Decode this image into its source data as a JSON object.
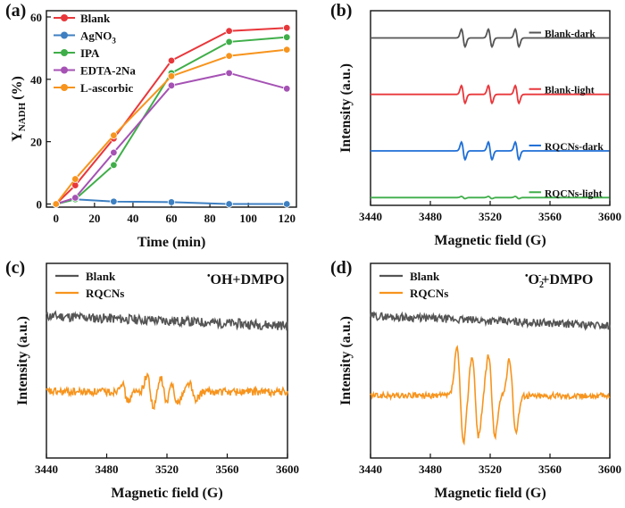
{
  "chart_data": [
    {
      "panel": "(a)",
      "type": "line",
      "xlabel": "Time (min)",
      "ylabel_main": "Y",
      "ylabel_sub": "NADH",
      "ylabel_unit": "(%)",
      "xlim": [
        -5,
        125
      ],
      "ylim": [
        -1,
        62
      ],
      "xticks": [
        0,
        20,
        40,
        60,
        80,
        100,
        120
      ],
      "yticks": [
        0,
        20,
        40,
        60
      ],
      "x": [
        0,
        10,
        30,
        60,
        90,
        120
      ],
      "series": [
        {
          "name": "Blank",
          "color": "#e8373b",
          "values": [
            0,
            6,
            21,
            46,
            55.5,
            56.5
          ]
        },
        {
          "name": "AgNO",
          "subscript": "3",
          "color": "#3d7fc1",
          "values": [
            0,
            1.5,
            0.8,
            0.6,
            0,
            0
          ]
        },
        {
          "name": "IPA",
          "color": "#3fae49",
          "values": [
            0,
            1.5,
            12.5,
            42,
            52,
            53.5
          ]
        },
        {
          "name": "EDTA-2Na",
          "color": "#a552b4",
          "values": [
            0,
            2,
            16.5,
            38,
            42,
            37
          ]
        },
        {
          "name": "L-ascorbic",
          "color": "#f7941d",
          "values": [
            0,
            8,
            22,
            41,
            47.5,
            49.5
          ]
        }
      ]
    },
    {
      "panel": "(b)",
      "type": "line",
      "xlabel": "Magnetic field (G)",
      "ylabel": "Intensity (a.u.)",
      "xlim": [
        3440,
        3600
      ],
      "xticks": [
        3440,
        3480,
        3520,
        3560,
        3600
      ],
      "series": [
        {
          "name": "Blank-dark",
          "color": "#555555",
          "baseline": 0.86,
          "amplitude": 0.62,
          "noise": 0
        },
        {
          "name": "Blank-light",
          "color": "#e8373b",
          "baseline": 0.57,
          "amplitude": 0.62,
          "noise": 0
        },
        {
          "name": "RQCNs-dark",
          "color": "#1f6fd6",
          "baseline": 0.28,
          "amplitude": 0.62,
          "noise": 0
        },
        {
          "name": "RQCNs-light",
          "color": "#3fae49",
          "baseline": 0.04,
          "amplitude": 0.08,
          "noise": 0
        }
      ],
      "peak_centers": [
        3502,
        3520,
        3538
      ]
    },
    {
      "panel": "(c)",
      "type": "line",
      "title_dot": "•",
      "title": "OH+DMPO",
      "xlabel": "Magnetic field (G)",
      "ylabel": "Intensity (a.u.)",
      "xlim": [
        3440,
        3600
      ],
      "xticks": [
        3440,
        3480,
        3520,
        3560,
        3600
      ],
      "series": [
        {
          "name": "Blank",
          "color": "#555555",
          "baseline": 0.73,
          "slope": -0.05,
          "noise": 0.025
        },
        {
          "name": "RQCNs",
          "color": "#f7941d",
          "baseline": 0.34,
          "slope": 0,
          "noise": 0.02,
          "peaks": [
            [
              3492,
              0.08
            ],
            [
              3509,
              0.14
            ],
            [
              3518,
              0.12
            ],
            [
              3525,
              0.1
            ],
            [
              3537,
              0.08
            ]
          ]
        }
      ]
    },
    {
      "panel": "(d)",
      "type": "line",
      "title_dot": "•",
      "title": "O",
      "title_sub": "2",
      "title_sup": "-",
      "title_end": "+DMPO",
      "xlabel": "Magnetic field (G)",
      "ylabel": "Intensity (a.u.)",
      "xlim": [
        3440,
        3600
      ],
      "xticks": [
        3440,
        3480,
        3520,
        3560,
        3600
      ],
      "series": [
        {
          "name": "Blank",
          "color": "#555555",
          "baseline": 0.73,
          "slope": -0.05,
          "noise": 0.02
        },
        {
          "name": "RQCNs",
          "color": "#f7941d",
          "baseline": 0.32,
          "slope": 0,
          "noise": 0.015,
          "peaks": [
            [
              3500,
              0.4
            ],
            [
              3510,
              0.34
            ],
            [
              3521,
              0.34
            ],
            [
              3535,
              0.3
            ]
          ]
        }
      ]
    }
  ]
}
